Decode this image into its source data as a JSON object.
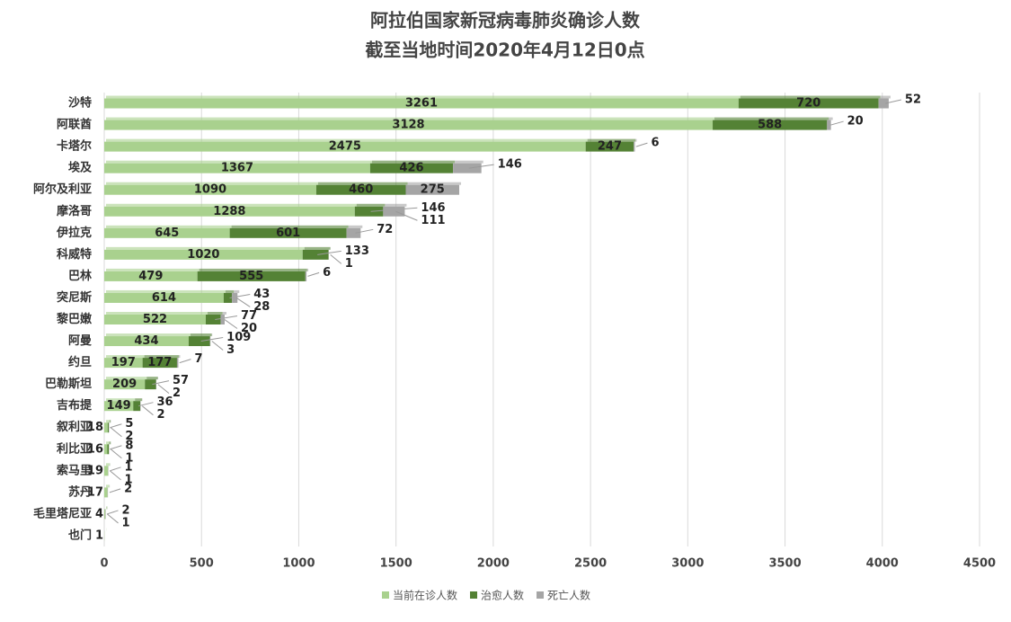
{
  "chart_data": {
    "type": "stacked_barh",
    "title": "阿拉伯国家新冠病毒肺炎确诊人数",
    "subtitle": "截至当地时间2020年4月12日0点",
    "categories": [
      "沙特",
      "阿联酋",
      "卡塔尔",
      "埃及",
      "阿尔及利亚",
      "摩洛哥",
      "伊拉克",
      "科威特",
      "巴林",
      "突尼斯",
      "黎巴嫩",
      "阿曼",
      "约旦",
      "巴勒斯坦",
      "吉布提",
      "叙利亚",
      "利比亚",
      "索马里",
      "苏丹",
      "毛里塔尼亚",
      "也门"
    ],
    "series": [
      {
        "name": "当前在诊人数",
        "color": "#a9d18e",
        "values": [
          3261,
          3128,
          2475,
          1367,
          1090,
          1288,
          645,
          1020,
          479,
          614,
          522,
          434,
          197,
          209,
          149,
          18,
          16,
          19,
          17,
          4,
          1
        ]
      },
      {
        "name": "治愈人数",
        "color": "#548235",
        "values": [
          720,
          588,
          247,
          426,
          460,
          146,
          601,
          133,
          555,
          43,
          77,
          109,
          177,
          57,
          36,
          5,
          8,
          1,
          null,
          2,
          null
        ]
      },
      {
        "name": "死亡人数",
        "color": "#a5a5a5",
        "values": [
          52,
          20,
          6,
          146,
          275,
          111,
          72,
          1,
          6,
          28,
          20,
          3,
          7,
          2,
          2,
          2,
          1,
          1,
          2,
          1,
          null
        ]
      }
    ],
    "xlim": [
      0,
      4500
    ],
    "xticks": [
      0,
      500,
      1000,
      1500,
      2000,
      2500,
      3000,
      3500,
      4000,
      4500
    ],
    "grid": true,
    "legend": "bottom"
  }
}
